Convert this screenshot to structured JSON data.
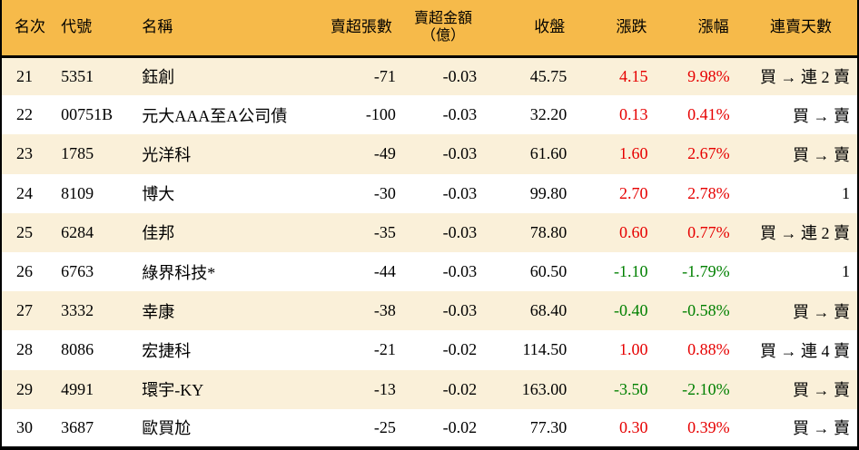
{
  "colors": {
    "header_bg": "#f6ba4a",
    "row_alt_bg": "#faf0d9",
    "row_bg": "#ffffff",
    "up_text": "#e60000",
    "down_text": "#008000",
    "border": "#000000"
  },
  "table": {
    "columns": [
      {
        "key": "rank",
        "label": "名次"
      },
      {
        "key": "code",
        "label": "代號"
      },
      {
        "key": "name",
        "label": "名稱"
      },
      {
        "key": "sell_volume",
        "label": "賣超張數"
      },
      {
        "key": "sell_amount",
        "label": "賣超金額",
        "label2": "（億）"
      },
      {
        "key": "close",
        "label": "收盤"
      },
      {
        "key": "change",
        "label": "漲跌"
      },
      {
        "key": "change_pct",
        "label": "漲幅"
      },
      {
        "key": "streak",
        "label": "連賣天數"
      }
    ],
    "rows": [
      {
        "rank": "21",
        "code": "5351",
        "name": "鈺創",
        "sell_volume": "-71",
        "sell_amount": "-0.03",
        "close": "45.75",
        "change": "4.15",
        "change_pct": "9.98%",
        "streak": "買 → 連 2 賣"
      },
      {
        "rank": "22",
        "code": "00751B",
        "name": "元大AAA至A公司債",
        "sell_volume": "-100",
        "sell_amount": "-0.03",
        "close": "32.20",
        "change": "0.13",
        "change_pct": "0.41%",
        "streak": "買 → 賣"
      },
      {
        "rank": "23",
        "code": "1785",
        "name": "光洋科",
        "sell_volume": "-49",
        "sell_amount": "-0.03",
        "close": "61.60",
        "change": "1.60",
        "change_pct": "2.67%",
        "streak": "買 → 賣"
      },
      {
        "rank": "24",
        "code": "8109",
        "name": "博大",
        "sell_volume": "-30",
        "sell_amount": "-0.03",
        "close": "99.80",
        "change": "2.70",
        "change_pct": "2.78%",
        "streak": "1"
      },
      {
        "rank": "25",
        "code": "6284",
        "name": "佳邦",
        "sell_volume": "-35",
        "sell_amount": "-0.03",
        "close": "78.80",
        "change": "0.60",
        "change_pct": "0.77%",
        "streak": "買 → 連 2 賣"
      },
      {
        "rank": "26",
        "code": "6763",
        "name": "綠界科技*",
        "sell_volume": "-44",
        "sell_amount": "-0.03",
        "close": "60.50",
        "change": "-1.10",
        "change_pct": "-1.79%",
        "streak": "1"
      },
      {
        "rank": "27",
        "code": "3332",
        "name": "幸康",
        "sell_volume": "-38",
        "sell_amount": "-0.03",
        "close": "68.40",
        "change": "-0.40",
        "change_pct": "-0.58%",
        "streak": "買 → 賣"
      },
      {
        "rank": "28",
        "code": "8086",
        "name": "宏捷科",
        "sell_volume": "-21",
        "sell_amount": "-0.02",
        "close": "114.50",
        "change": "1.00",
        "change_pct": "0.88%",
        "streak": "買 → 連 4 賣"
      },
      {
        "rank": "29",
        "code": "4991",
        "name": "環宇-KY",
        "sell_volume": "-13",
        "sell_amount": "-0.02",
        "close": "163.00",
        "change": "-3.50",
        "change_pct": "-2.10%",
        "streak": "買 → 賣"
      },
      {
        "rank": "30",
        "code": "3687",
        "name": "歐買尬",
        "sell_volume": "-25",
        "sell_amount": "-0.02",
        "close": "77.30",
        "change": "0.30",
        "change_pct": "0.39%",
        "streak": "買 → 賣"
      }
    ]
  }
}
